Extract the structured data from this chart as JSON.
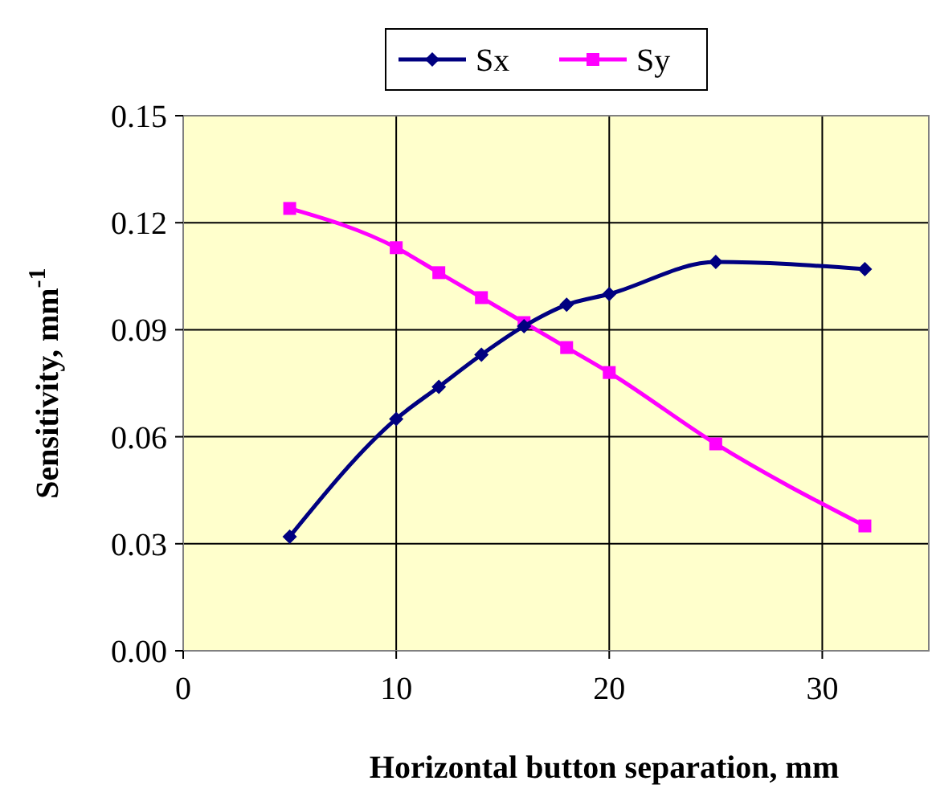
{
  "chart_data": {
    "type": "line",
    "xlabel": "Horizontal button separation, mm",
    "ylabel": "Sensitivity, mm$^{-1}$",
    "x": [
      5,
      10,
      12,
      14,
      16,
      18,
      20,
      25,
      32
    ],
    "series": [
      {
        "name": "Sx",
        "color": "#000080",
        "marker": "diamond",
        "values": [
          0.032,
          0.065,
          0.074,
          0.083,
          0.091,
          0.097,
          0.1,
          0.109,
          0.107
        ]
      },
      {
        "name": "Sy",
        "color": "#ff00ff",
        "marker": "square",
        "values": [
          0.124,
          0.113,
          0.106,
          0.099,
          0.092,
          0.085,
          0.078,
          0.058,
          0.035
        ]
      }
    ],
    "xlim": [
      0,
      35
    ],
    "xticks": [
      0,
      10,
      20,
      30
    ],
    "ylim": [
      0,
      0.15
    ],
    "yticks": [
      {
        "value": 0,
        "label": "0.00"
      },
      {
        "value": 0.03,
        "label": "0.03"
      },
      {
        "value": 0.06,
        "label": "0.06"
      },
      {
        "value": 0.09,
        "label": "0.09"
      },
      {
        "value": 0.12,
        "label": "0.12"
      },
      {
        "value": 0.15,
        "label": "0.15"
      }
    ],
    "grid": true,
    "legend": "top",
    "line_style": "solid"
  }
}
